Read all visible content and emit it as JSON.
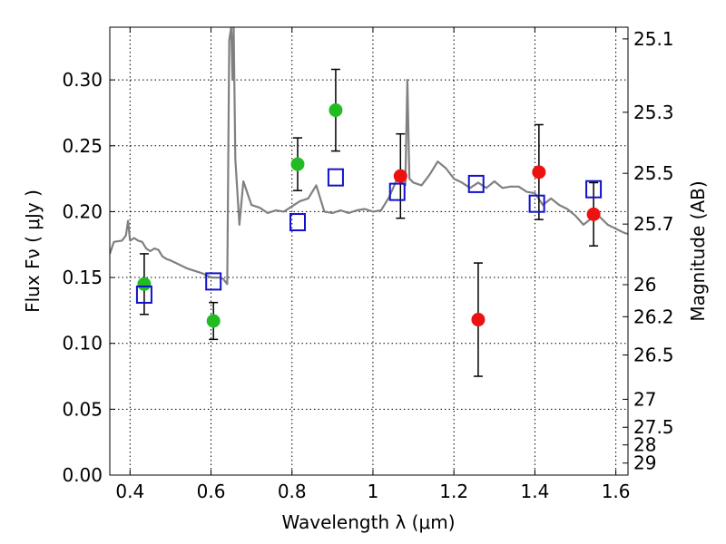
{
  "chart_data": {
    "type": "scatter",
    "xlabel": "Wavelength  λ (μm)",
    "ylabel": "Flux  Fν  ( μJy )",
    "y2label": "Magnitude (AB)",
    "xlim": [
      0.35,
      1.63
    ],
    "ylim": [
      0.0,
      0.34
    ],
    "grid": true,
    "x_ticks": [
      0.4,
      0.6,
      0.8,
      1.0,
      1.2,
      1.4,
      1.6
    ],
    "x_tick_labels": [
      "0.4",
      "0.6",
      "0.8",
      "1",
      "1.2",
      "1.4",
      "1.6"
    ],
    "y_ticks": [
      0.0,
      0.05,
      0.1,
      0.15,
      0.2,
      0.25,
      0.3
    ],
    "y_tick_labels": [
      "0.00",
      "0.05",
      "0.10",
      "0.15",
      "0.20",
      "0.25",
      "0.30"
    ],
    "y2_tick_labels": [
      "25.1",
      "25.3",
      "25.5",
      "25.7",
      "26",
      "26.2",
      "26.5",
      "27",
      "27.5",
      "28",
      "29"
    ],
    "y2_tick_mags": [
      25.1,
      25.3,
      25.5,
      25.7,
      26.0,
      26.2,
      26.5,
      27.0,
      27.5,
      28.0,
      29.0
    ],
    "series": [
      {
        "marker": "filled-circle",
        "color": "#22bb22",
        "points": [
          {
            "x": 0.435,
            "y": 0.145,
            "err": 0.023
          },
          {
            "x": 0.606,
            "y": 0.117,
            "err": 0.014
          },
          {
            "x": 0.814,
            "y": 0.236,
            "err": 0.02
          },
          {
            "x": 0.908,
            "y": 0.277,
            "err": 0.031
          }
        ]
      },
      {
        "marker": "filled-circle",
        "color": "#ee1111",
        "points": [
          {
            "x": 1.068,
            "y": 0.227,
            "err": 0.032
          },
          {
            "x": 1.26,
            "y": 0.118,
            "err": 0.043
          },
          {
            "x": 1.41,
            "y": 0.23,
            "err": 0.036
          },
          {
            "x": 1.545,
            "y": 0.198,
            "err": 0.024
          }
        ]
      },
      {
        "marker": "open-square",
        "color": "#1111cc",
        "points": [
          {
            "x": 0.435,
            "y": 0.137
          },
          {
            "x": 0.606,
            "y": 0.147
          },
          {
            "x": 0.814,
            "y": 0.192
          },
          {
            "x": 0.908,
            "y": 0.226
          },
          {
            "x": 1.06,
            "y": 0.215
          },
          {
            "x": 1.255,
            "y": 0.221
          },
          {
            "x": 1.405,
            "y": 0.206
          },
          {
            "x": 1.545,
            "y": 0.217
          }
        ]
      },
      {
        "type": "line",
        "color": "#808080",
        "x": [
          0.35,
          0.36,
          0.38,
          0.39,
          0.395,
          0.4,
          0.41,
          0.42,
          0.43,
          0.44,
          0.45,
          0.46,
          0.47,
          0.48,
          0.49,
          0.5,
          0.52,
          0.54,
          0.56,
          0.58,
          0.6,
          0.62,
          0.63,
          0.635,
          0.64,
          0.645,
          0.65,
          0.653,
          0.656,
          0.66,
          0.67,
          0.68,
          0.7,
          0.72,
          0.74,
          0.76,
          0.78,
          0.8,
          0.82,
          0.84,
          0.86,
          0.88,
          0.9,
          0.92,
          0.94,
          0.96,
          0.98,
          1.0,
          1.02,
          1.04,
          1.06,
          1.08,
          1.085,
          1.09,
          1.1,
          1.12,
          1.14,
          1.16,
          1.18,
          1.2,
          1.22,
          1.24,
          1.26,
          1.28,
          1.3,
          1.32,
          1.34,
          1.36,
          1.38,
          1.4,
          1.42,
          1.44,
          1.46,
          1.48,
          1.5,
          1.52,
          1.54,
          1.56,
          1.58,
          1.6,
          1.62,
          1.63
        ],
        "y": [
          0.168,
          0.177,
          0.178,
          0.182,
          0.193,
          0.178,
          0.18,
          0.178,
          0.177,
          0.172,
          0.17,
          0.172,
          0.171,
          0.166,
          0.164,
          0.163,
          0.16,
          0.157,
          0.155,
          0.153,
          0.15,
          0.15,
          0.149,
          0.147,
          0.145,
          0.33,
          0.34,
          0.3,
          0.34,
          0.24,
          0.19,
          0.223,
          0.205,
          0.203,
          0.199,
          0.201,
          0.2,
          0.204,
          0.208,
          0.21,
          0.22,
          0.2,
          0.199,
          0.201,
          0.199,
          0.201,
          0.202,
          0.2,
          0.201,
          0.211,
          0.225,
          0.22,
          0.3,
          0.225,
          0.222,
          0.22,
          0.228,
          0.238,
          0.233,
          0.225,
          0.222,
          0.218,
          0.222,
          0.218,
          0.223,
          0.218,
          0.219,
          0.219,
          0.215,
          0.214,
          0.205,
          0.21,
          0.205,
          0.202,
          0.197,
          0.19,
          0.195,
          0.196,
          0.19,
          0.187,
          0.184,
          0.183
        ]
      }
    ]
  }
}
